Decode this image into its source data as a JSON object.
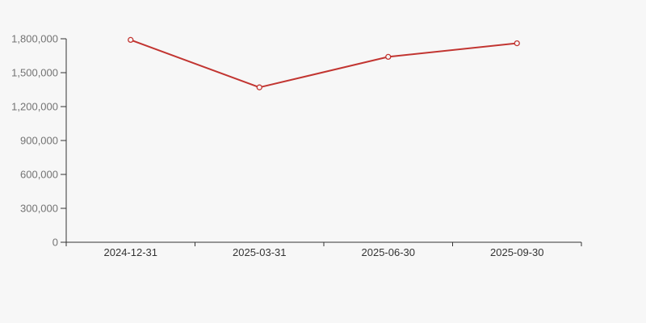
{
  "page": {
    "background": "#f7f7f7"
  },
  "chart_data": {
    "type": "line",
    "title": "",
    "categories": [
      "2024-12-31",
      "2025-03-31",
      "2025-06-30",
      "2025-09-30"
    ],
    "series": [
      {
        "values": [
          1790000,
          1370000,
          1640000,
          1760000
        ],
        "color": "#c23531",
        "marker": "hollow-circle"
      }
    ],
    "ylim": [
      0,
      1800000
    ],
    "y_tick_step": 300000,
    "y_tick_labels": [
      "0",
      "300,000",
      "600,000",
      "900,000",
      "1,200,000",
      "1,500,000",
      "1,800,000"
    ],
    "xlabel": "",
    "ylabel": "",
    "grid": false,
    "legend": false,
    "styles": {
      "axis_line_color": "#333333",
      "y_tick_label_color": "#737373",
      "x_tick_label_color": "#333333",
      "marker_fill": "#f7f7f7",
      "line_width": 2
    }
  }
}
